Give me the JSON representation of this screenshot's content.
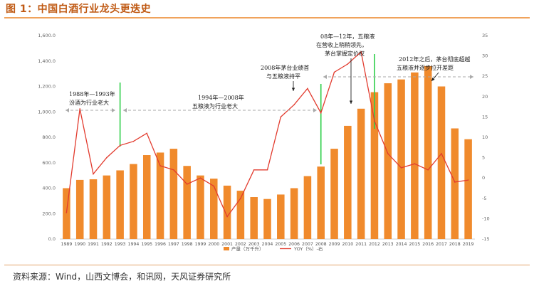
{
  "figure": {
    "title": "图 1：中国白酒行业龙头更迭史",
    "source": "资料来源：Wind，山西文博会，和讯网，天风证券研究所"
  },
  "chart_data": {
    "type": "bar",
    "categories": [
      "1989",
      "1990",
      "1991",
      "1992",
      "1993",
      "1994",
      "1995",
      "1996",
      "1997",
      "1998",
      "1999",
      "2000",
      "2001",
      "2002",
      "2003",
      "2004",
      "2005",
      "2006",
      "2007",
      "2008",
      "2009",
      "2010",
      "2011",
      "2012",
      "2013",
      "2014",
      "2015",
      "2016",
      "2017",
      "2018",
      "2019"
    ],
    "series": [
      {
        "name": "产量（万千升）",
        "kind": "bar",
        "axis": "left",
        "color": "#f08a2c",
        "values": [
          400,
          465,
          470,
          500,
          540,
          590,
          660,
          680,
          710,
          575,
          500,
          475,
          420,
          380,
          330,
          315,
          350,
          400,
          495,
          570,
          710,
          890,
          1025,
          1155,
          1225,
          1255,
          1310,
          1360,
          1200,
          870,
          785
        ]
      },
      {
        "name": "YOY（%）-右",
        "kind": "line",
        "axis": "right",
        "color": "#e23b2e",
        "values": [
          -8.5,
          17,
          1,
          5,
          8,
          9,
          11,
          3,
          2,
          -1.5,
          0,
          -2,
          -9.5,
          -5,
          2,
          2,
          15,
          18,
          22,
          16,
          26,
          28,
          31,
          14,
          6,
          2.5,
          3.5,
          2,
          6,
          -1,
          -0.5
        ]
      }
    ],
    "left_axis": {
      "min": 0,
      "max": 1600,
      "ticks": [
        "0.0",
        "200.0",
        "400.0",
        "600.0",
        "800.0",
        "1,000.0",
        "1,200.0",
        "1,400.0",
        "1,600.0"
      ]
    },
    "right_axis": {
      "min": -15,
      "max": 35,
      "ticks": [
        "-15",
        "-10",
        "-5",
        "0",
        "5",
        "10",
        "15",
        "20",
        "25",
        "30",
        "35"
      ]
    },
    "annotations": [
      {
        "text_lines": [
          "1988年—1993年",
          "汾酒为行业老大"
        ]
      },
      {
        "text_lines": [
          "1994年—2008年",
          "五粮液为行业老大"
        ]
      },
      {
        "text_lines": [
          "2008年茅台业绩首",
          "与五粮液持平"
        ]
      },
      {
        "text_lines": [
          "08年—12年，五粮液",
          "在营收上稍稍领先，",
          "茅台掌握定价权"
        ]
      },
      {
        "text_lines": [
          "2012年之后，茅台彻底超越",
          "五粮液并逐步拉开差距"
        ]
      }
    ],
    "dividers_at": [
      "1993",
      "2008",
      "2012"
    ],
    "legend_position": "bottom",
    "grid": false
  }
}
